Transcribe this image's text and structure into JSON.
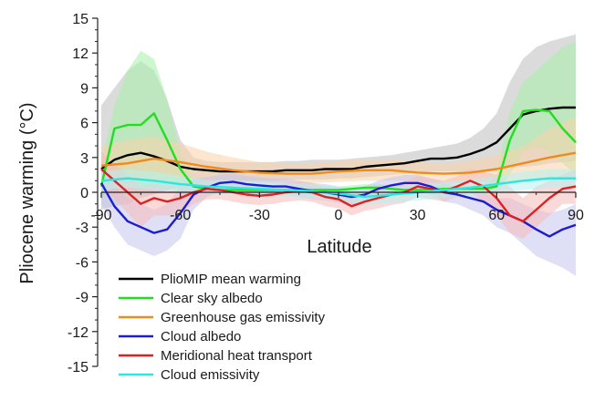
{
  "chart_data": {
    "type": "line",
    "xlabel": "Latitude",
    "ylabel": "Pliocene warming (°C)",
    "xlim": [
      -90,
      90
    ],
    "ylim": [
      -15,
      15
    ],
    "x_ticks": [
      "-90",
      "-60",
      "-30",
      "0",
      "30",
      "60",
      "90"
    ],
    "y_ticks": [
      "15",
      "12",
      "9",
      "6",
      "3",
      "0",
      "-3",
      "-6",
      "-9",
      "-12",
      "-15"
    ],
    "grid": false,
    "legend_position": "bottom-left",
    "series": [
      {
        "name": "PlioMIP mean warming",
        "color": "#000000",
        "band_color": "#bdbdbd",
        "x": [
          -90,
          -85,
          -80,
          -75,
          -70,
          -65,
          -60,
          -55,
          -50,
          -45,
          -40,
          -35,
          -30,
          -25,
          -20,
          -15,
          -10,
          -5,
          0,
          5,
          10,
          15,
          20,
          25,
          30,
          35,
          40,
          45,
          50,
          55,
          60,
          65,
          70,
          75,
          80,
          85,
          90
        ],
        "y": [
          2.0,
          2.8,
          3.2,
          3.4,
          3.1,
          2.7,
          2.2,
          2.0,
          1.9,
          1.8,
          1.8,
          1.8,
          1.8,
          1.8,
          1.9,
          1.9,
          1.9,
          2.0,
          2.0,
          2.0,
          2.2,
          2.3,
          2.4,
          2.5,
          2.7,
          2.9,
          2.9,
          3.0,
          3.3,
          3.7,
          4.3,
          5.5,
          6.7,
          7.0,
          7.2,
          7.3,
          7.3
        ],
        "upper": [
          7.5,
          9.0,
          10.5,
          11.3,
          10.5,
          8.0,
          4.5,
          3.0,
          2.7,
          2.6,
          2.6,
          2.6,
          2.6,
          2.6,
          2.7,
          2.7,
          2.8,
          2.8,
          2.8,
          2.9,
          3.0,
          3.1,
          3.2,
          3.4,
          3.6,
          3.8,
          4.0,
          4.2,
          4.7,
          5.5,
          6.8,
          9.5,
          11.5,
          12.5,
          13.0,
          13.3,
          13.6
        ],
        "lower": [
          -1.5,
          -1.2,
          -1.0,
          -0.5,
          -0.2,
          0.2,
          0.5,
          0.8,
          0.9,
          1.0,
          1.0,
          1.0,
          1.0,
          1.0,
          1.1,
          1.1,
          1.1,
          1.1,
          1.2,
          1.2,
          1.3,
          1.4,
          1.5,
          1.6,
          1.7,
          1.8,
          1.8,
          1.8,
          1.8,
          1.9,
          2.0,
          2.1,
          2.2,
          2.3,
          2.5,
          2.6,
          2.7
        ]
      },
      {
        "name": "Clear sky albedo",
        "color": "#22dd22",
        "band_color": "#a8f0a8",
        "x": [
          -90,
          -85,
          -80,
          -75,
          -70,
          -65,
          -60,
          -55,
          -50,
          -45,
          -40,
          -35,
          -30,
          -25,
          -20,
          -15,
          -10,
          -5,
          0,
          5,
          10,
          15,
          20,
          25,
          30,
          35,
          40,
          45,
          50,
          55,
          60,
          65,
          70,
          75,
          80,
          85,
          90
        ],
        "y": [
          0.5,
          5.5,
          5.8,
          5.8,
          6.8,
          4.5,
          2.0,
          0.5,
          0.3,
          0.2,
          0.2,
          0.2,
          0.2,
          0.2,
          0.2,
          0.2,
          0.2,
          0.2,
          0.2,
          0.3,
          0.4,
          0.4,
          0.3,
          0.2,
          0.2,
          0.2,
          0.3,
          0.3,
          0.3,
          0.3,
          0.5,
          4.5,
          7.0,
          7.1,
          7.0,
          5.5,
          4.3
        ],
        "upper": [
          2.5,
          7.5,
          10.5,
          12.2,
          11.5,
          8.0,
          3.5,
          1.0,
          0.6,
          0.5,
          0.5,
          0.5,
          0.5,
          0.5,
          0.5,
          0.5,
          0.5,
          0.5,
          0.5,
          0.6,
          0.7,
          0.7,
          0.6,
          0.5,
          0.5,
          0.5,
          0.6,
          0.6,
          0.6,
          0.6,
          1.5,
          7.0,
          9.5,
          10.5,
          11.5,
          12.5,
          13.0
        ],
        "lower": [
          -1.0,
          2.0,
          1.0,
          0.5,
          0.5,
          0.5,
          0.0,
          0.0,
          -0.1,
          -0.1,
          -0.1,
          -0.1,
          -0.1,
          -0.1,
          -0.1,
          -0.1,
          -0.1,
          -0.1,
          -0.1,
          0.0,
          0.1,
          0.1,
          0.0,
          -0.1,
          -0.1,
          -0.1,
          0.0,
          0.0,
          0.0,
          0.0,
          -0.2,
          1.5,
          3.5,
          4.0,
          3.5,
          2.5,
          1.5
        ]
      },
      {
        "name": "Greenhouse gas emissivity",
        "color": "#f08a1c",
        "band_color": "#f9d2a8",
        "x": [
          -90,
          -80,
          -70,
          -60,
          -50,
          -40,
          -30,
          -20,
          -10,
          0,
          10,
          20,
          30,
          40,
          50,
          60,
          70,
          80,
          90
        ],
        "y": [
          2.3,
          2.5,
          2.9,
          2.6,
          2.2,
          1.9,
          1.7,
          1.6,
          1.6,
          1.8,
          1.9,
          1.9,
          1.7,
          1.6,
          1.7,
          2.0,
          2.5,
          3.0,
          3.4
        ],
        "upper": [
          4.0,
          4.5,
          4.8,
          4.2,
          3.5,
          3.0,
          2.6,
          2.5,
          2.5,
          2.7,
          2.8,
          2.8,
          2.6,
          2.5,
          2.7,
          3.2,
          4.0,
          5.5,
          6.5
        ],
        "lower": [
          0.8,
          0.8,
          1.2,
          1.2,
          1.0,
          0.9,
          0.8,
          0.8,
          0.8,
          0.9,
          1.0,
          1.0,
          0.9,
          0.8,
          0.8,
          0.9,
          1.0,
          1.2,
          1.3
        ]
      },
      {
        "name": "Cloud albedo",
        "color": "#1c1cd0",
        "band_color": "#c5c5ee",
        "x": [
          -90,
          -85,
          -80,
          -75,
          -70,
          -65,
          -60,
          -55,
          -50,
          -45,
          -40,
          -35,
          -30,
          -25,
          -20,
          -15,
          -10,
          -5,
          0,
          5,
          10,
          15,
          20,
          25,
          30,
          35,
          40,
          45,
          50,
          55,
          60,
          65,
          70,
          75,
          80,
          85,
          90
        ],
        "y": [
          0.8,
          -1.2,
          -2.5,
          -3.0,
          -3.5,
          -3.2,
          -1.8,
          -0.2,
          0.4,
          0.8,
          0.9,
          0.7,
          0.6,
          0.5,
          0.5,
          0.3,
          0.1,
          0.0,
          -0.2,
          -0.4,
          -0.2,
          0.3,
          0.6,
          0.8,
          0.8,
          0.5,
          0.0,
          -0.2,
          -0.5,
          -0.8,
          -1.5,
          -2.0,
          -2.5,
          -3.2,
          -3.8,
          -3.2,
          -2.8
        ],
        "upper": [
          2.5,
          0.5,
          -0.5,
          -1.0,
          -1.5,
          -1.0,
          0.5,
          1.2,
          1.3,
          1.5,
          1.6,
          1.4,
          1.3,
          1.2,
          1.2,
          1.0,
          0.8,
          0.7,
          0.5,
          0.3,
          0.5,
          1.0,
          1.3,
          1.5,
          1.5,
          1.2,
          0.8,
          0.5,
          0.3,
          0.0,
          -0.5,
          -0.5,
          -1.0,
          -1.5,
          -1.8,
          -1.5,
          -1.0
        ],
        "lower": [
          -1.0,
          -3.0,
          -4.5,
          -5.0,
          -5.5,
          -5.0,
          -4.0,
          -1.5,
          -0.4,
          0.0,
          0.2,
          0.0,
          -0.1,
          -0.2,
          -0.2,
          -0.4,
          -0.6,
          -0.7,
          -0.9,
          -1.1,
          -0.9,
          -0.4,
          -0.1,
          0.1,
          0.1,
          -0.2,
          -0.8,
          -1.0,
          -1.5,
          -2.0,
          -3.0,
          -3.5,
          -4.5,
          -5.5,
          -6.0,
          -6.5,
          -7.2
        ]
      },
      {
        "name": "Meridional heat transport",
        "color": "#e02020",
        "band_color": "#f6baba",
        "x": [
          -90,
          -85,
          -80,
          -75,
          -70,
          -65,
          -60,
          -55,
          -50,
          -45,
          -40,
          -35,
          -30,
          -25,
          -20,
          -15,
          -10,
          -5,
          0,
          5,
          10,
          15,
          20,
          25,
          30,
          35,
          40,
          45,
          50,
          55,
          60,
          65,
          70,
          75,
          80,
          85,
          90
        ],
        "y": [
          2.0,
          1.0,
          0.0,
          -1.0,
          -0.5,
          -0.8,
          -0.5,
          0.0,
          0.3,
          0.2,
          0.0,
          -0.2,
          -0.3,
          -0.2,
          0.0,
          0.1,
          0.0,
          -0.4,
          -0.6,
          -1.2,
          -0.8,
          -0.5,
          -0.2,
          0.0,
          0.5,
          0.3,
          0.1,
          0.5,
          1.0,
          0.5,
          -0.5,
          -2.0,
          -2.5,
          -1.5,
          -0.5,
          0.3,
          0.5
        ],
        "upper": [
          3.5,
          2.5,
          1.5,
          0.5,
          0.8,
          0.5,
          0.8,
          1.0,
          1.2,
          1.0,
          0.8,
          0.6,
          0.5,
          0.6,
          0.8,
          0.9,
          0.8,
          0.4,
          0.2,
          -0.2,
          0.2,
          0.4,
          0.7,
          0.9,
          1.4,
          1.2,
          1.0,
          1.4,
          2.0,
          1.8,
          1.5,
          0.5,
          -0.5,
          0.5,
          1.0,
          1.5,
          2.0
        ],
        "lower": [
          0.5,
          -0.5,
          -1.8,
          -3.0,
          -2.0,
          -2.0,
          -1.8,
          -1.0,
          -0.6,
          -0.6,
          -0.8,
          -1.0,
          -1.1,
          -1.0,
          -0.8,
          -0.7,
          -0.8,
          -1.2,
          -1.4,
          -2.0,
          -1.6,
          -1.4,
          -1.1,
          -0.9,
          -0.4,
          -0.6,
          -0.8,
          -0.4,
          0.0,
          -0.8,
          -2.0,
          -3.5,
          -4.0,
          -3.0,
          -2.0,
          -1.0,
          -1.0
        ]
      },
      {
        "name": "Cloud emissivity",
        "color": "#2ee6e0",
        "band_color": "#b5f2f0",
        "x": [
          -90,
          -80,
          -70,
          -60,
          -50,
          -40,
          -30,
          -20,
          -10,
          0,
          10,
          20,
          30,
          40,
          50,
          60,
          70,
          80,
          90
        ],
        "y": [
          1.0,
          1.2,
          1.0,
          0.7,
          0.5,
          0.4,
          0.3,
          0.2,
          0.1,
          -0.1,
          -0.4,
          -0.2,
          0.0,
          0.2,
          0.4,
          0.7,
          1.0,
          1.2,
          1.2
        ],
        "upper": [
          1.8,
          2.0,
          1.8,
          1.4,
          1.1,
          1.0,
          0.9,
          0.8,
          0.7,
          0.5,
          0.3,
          0.5,
          0.7,
          0.9,
          1.1,
          1.4,
          1.8,
          2.0,
          2.0
        ],
        "lower": [
          0.2,
          0.4,
          0.2,
          0.0,
          -0.1,
          -0.2,
          -0.3,
          -0.4,
          -0.5,
          -0.7,
          -1.1,
          -0.9,
          -0.7,
          -0.5,
          -0.3,
          0.0,
          0.2,
          0.4,
          0.4
        ]
      }
    ],
    "legend_order": [
      0,
      1,
      2,
      3,
      4,
      5
    ]
  }
}
